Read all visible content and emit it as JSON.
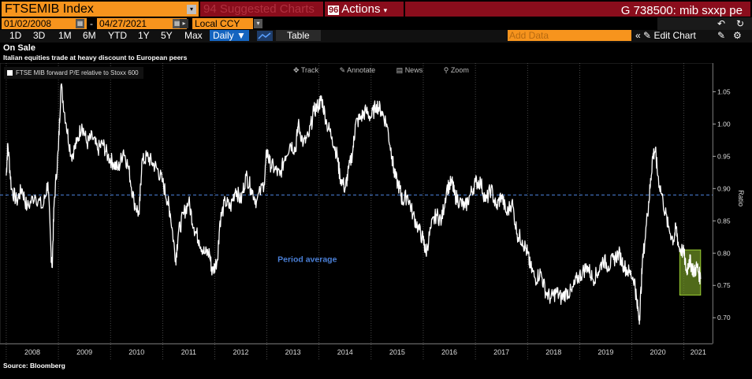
{
  "toolbar": {
    "security": "FTSEMIB Index",
    "suggested_code": "94",
    "suggested": "Suggested Charts",
    "actions_code": "96",
    "actions": "Actions",
    "command": "G 738500: mib sxxp pe",
    "start_date": "01/02/2008",
    "end_date": "04/27/2021",
    "currency": "Local CCY",
    "periods": [
      "1D",
      "3D",
      "1M",
      "6M",
      "YTD",
      "1Y",
      "5Y",
      "Max"
    ],
    "frequency": "Daily",
    "table": "Table",
    "add_data": "Add Data",
    "edit_chart": "Edit Chart"
  },
  "chart_tools": {
    "track": "Track",
    "annotate": "Annotate",
    "news": "News",
    "zoom": "Zoom"
  },
  "colors": {
    "line": "#ffffff",
    "average": "#4a7fd6",
    "highlight": "#9acd32",
    "background": "#000000",
    "orange": "#f7941d",
    "red": "#8a0d1c"
  },
  "chart_data": {
    "type": "line",
    "title": "On Sale",
    "subtitle": "Italian equities trade at heavy discount to European peers",
    "source": "Source: Bloomberg",
    "series": [
      {
        "name": "FTSE MIB forward P/E relative to Stoxx 600",
        "points": [
          [
            2008.0,
            0.92
          ],
          [
            2008.03,
            0.97
          ],
          [
            2008.1,
            0.9
          ],
          [
            2008.2,
            0.88
          ],
          [
            2008.3,
            0.9
          ],
          [
            2008.4,
            0.87
          ],
          [
            2008.55,
            0.89
          ],
          [
            2008.7,
            0.87
          ],
          [
            2008.8,
            0.91
          ],
          [
            2008.86,
            0.8
          ],
          [
            2008.88,
            0.78
          ],
          [
            2008.92,
            0.88
          ],
          [
            2009.0,
            0.96
          ],
          [
            2009.05,
            1.06
          ],
          [
            2009.15,
            1.0
          ],
          [
            2009.25,
            0.95
          ],
          [
            2009.35,
            0.97
          ],
          [
            2009.45,
            1.0
          ],
          [
            2009.55,
            0.97
          ],
          [
            2009.65,
            0.98
          ],
          [
            2009.75,
            0.96
          ],
          [
            2009.85,
            0.97
          ],
          [
            2009.95,
            0.95
          ],
          [
            2010.05,
            0.94
          ],
          [
            2010.15,
            0.93
          ],
          [
            2010.25,
            0.96
          ],
          [
            2010.35,
            0.93
          ],
          [
            2010.45,
            0.88
          ],
          [
            2010.55,
            0.86
          ],
          [
            2010.6,
            0.94
          ],
          [
            2010.7,
            0.95
          ],
          [
            2010.8,
            0.94
          ],
          [
            2010.9,
            0.93
          ],
          [
            2011.0,
            0.91
          ],
          [
            2011.1,
            0.88
          ],
          [
            2011.15,
            0.86
          ],
          [
            2011.25,
            0.79
          ],
          [
            2011.3,
            0.83
          ],
          [
            2011.4,
            0.86
          ],
          [
            2011.5,
            0.88
          ],
          [
            2011.6,
            0.84
          ],
          [
            2011.7,
            0.82
          ],
          [
            2011.8,
            0.8
          ],
          [
            2011.9,
            0.8
          ],
          [
            2011.95,
            0.77
          ],
          [
            2012.05,
            0.79
          ],
          [
            2012.1,
            0.85
          ],
          [
            2012.2,
            0.88
          ],
          [
            2012.3,
            0.87
          ],
          [
            2012.4,
            0.9
          ],
          [
            2012.5,
            0.88
          ],
          [
            2012.6,
            0.92
          ],
          [
            2012.7,
            0.9
          ],
          [
            2012.8,
            0.88
          ],
          [
            2012.95,
            0.91
          ],
          [
            2013.0,
            0.96
          ],
          [
            2013.05,
            0.94
          ],
          [
            2013.15,
            0.93
          ],
          [
            2013.25,
            0.92
          ],
          [
            2013.35,
            0.95
          ],
          [
            2013.45,
            0.97
          ],
          [
            2013.55,
            0.96
          ],
          [
            2013.6,
            1.0
          ],
          [
            2013.7,
            0.97
          ],
          [
            2013.8,
            0.98
          ],
          [
            2013.9,
            1.02
          ],
          [
            2014.0,
            1.03
          ],
          [
            2014.05,
            1.04
          ],
          [
            2014.15,
            1.0
          ],
          [
            2014.25,
            0.98
          ],
          [
            2014.35,
            0.95
          ],
          [
            2014.4,
            0.92
          ],
          [
            2014.5,
            0.9
          ],
          [
            2014.55,
            0.92
          ],
          [
            2014.65,
            0.96
          ],
          [
            2014.7,
            1.0
          ],
          [
            2014.8,
            1.01
          ],
          [
            2014.9,
            1.02
          ],
          [
            2015.0,
            1.01
          ],
          [
            2015.1,
            1.03
          ],
          [
            2015.2,
            1.02
          ],
          [
            2015.3,
            1.0
          ],
          [
            2015.4,
            0.95
          ],
          [
            2015.45,
            0.92
          ],
          [
            2015.55,
            0.9
          ],
          [
            2015.6,
            0.88
          ],
          [
            2015.7,
            0.89
          ],
          [
            2015.8,
            0.86
          ],
          [
            2015.9,
            0.84
          ],
          [
            2016.0,
            0.82
          ],
          [
            2016.05,
            0.8
          ],
          [
            2016.15,
            0.84
          ],
          [
            2016.25,
            0.86
          ],
          [
            2016.35,
            0.85
          ],
          [
            2016.45,
            0.9
          ],
          [
            2016.55,
            0.91
          ],
          [
            2016.6,
            0.89
          ],
          [
            2016.7,
            0.88
          ],
          [
            2016.8,
            0.87
          ],
          [
            2016.9,
            0.89
          ],
          [
            2017.0,
            0.91
          ],
          [
            2017.1,
            0.91
          ],
          [
            2017.2,
            0.88
          ],
          [
            2017.3,
            0.9
          ],
          [
            2017.4,
            0.87
          ],
          [
            2017.5,
            0.89
          ],
          [
            2017.6,
            0.86
          ],
          [
            2017.7,
            0.88
          ],
          [
            2017.8,
            0.83
          ],
          [
            2017.9,
            0.82
          ],
          [
            2018.0,
            0.8
          ],
          [
            2018.05,
            0.78
          ],
          [
            2018.15,
            0.76
          ],
          [
            2018.25,
            0.77
          ],
          [
            2018.35,
            0.74
          ],
          [
            2018.45,
            0.73
          ],
          [
            2018.55,
            0.74
          ],
          [
            2018.65,
            0.73
          ],
          [
            2018.75,
            0.74
          ],
          [
            2018.85,
            0.74
          ],
          [
            2018.95,
            0.76
          ],
          [
            2019.05,
            0.77
          ],
          [
            2019.15,
            0.78
          ],
          [
            2019.25,
            0.76
          ],
          [
            2019.35,
            0.77
          ],
          [
            2019.45,
            0.79
          ],
          [
            2019.55,
            0.78
          ],
          [
            2019.65,
            0.79
          ],
          [
            2019.75,
            0.8
          ],
          [
            2019.85,
            0.78
          ],
          [
            2019.95,
            0.77
          ],
          [
            2020.05,
            0.76
          ],
          [
            2020.1,
            0.72
          ],
          [
            2020.15,
            0.7
          ],
          [
            2020.2,
            0.78
          ],
          [
            2020.3,
            0.86
          ],
          [
            2020.35,
            0.9
          ],
          [
            2020.4,
            0.95
          ],
          [
            2020.45,
            0.96
          ],
          [
            2020.5,
            0.92
          ],
          [
            2020.6,
            0.88
          ],
          [
            2020.7,
            0.84
          ],
          [
            2020.8,
            0.82
          ],
          [
            2020.85,
            0.84
          ],
          [
            2020.9,
            0.81
          ],
          [
            2021.0,
            0.8
          ],
          [
            2021.05,
            0.77
          ],
          [
            2021.1,
            0.79
          ],
          [
            2021.15,
            0.78
          ],
          [
            2021.2,
            0.77
          ],
          [
            2021.25,
            0.78
          ],
          [
            2021.32,
            0.76
          ]
        ]
      }
    ],
    "average": {
      "label": "Period average",
      "value": 0.89
    },
    "highlight": {
      "x_range": [
        2020.92,
        2021.32
      ],
      "y_range": [
        0.735,
        0.805
      ]
    },
    "ylabel": "Ratio",
    "ylim": [
      0.66,
      1.07
    ],
    "xlim": [
      2007.88,
      2021.55
    ],
    "yticks": [
      0.7,
      0.75,
      0.8,
      0.85,
      0.9,
      0.95,
      1.0,
      1.05
    ],
    "yticklabels": [
      "0.70",
      "0.75",
      "0.80",
      "0.85",
      "0.90",
      "0.95",
      "1.00",
      "1.05"
    ],
    "xticks": [
      "2008",
      "2009",
      "2010",
      "2011",
      "2012",
      "2013",
      "2014",
      "2015",
      "2016",
      "2017",
      "2018",
      "2019",
      "2020",
      "2021"
    ],
    "legend_position": "top-left",
    "grid": "vertical dotted year separators"
  }
}
